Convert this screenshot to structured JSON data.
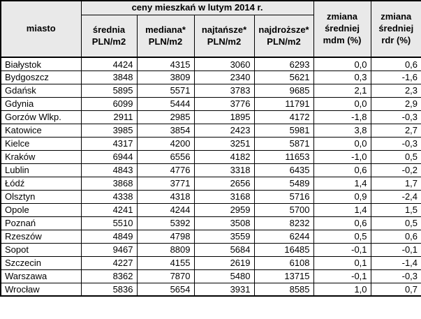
{
  "colors": {
    "header_bg": "#e9e9e9",
    "border": "#000000",
    "text": "#000000",
    "row_bg": "#ffffff"
  },
  "header": {
    "city": "miasto",
    "group": "ceny mieszkań w lutym 2014 r.",
    "sub": [
      {
        "line1": "średnia",
        "line2": "PLN/m2"
      },
      {
        "line1": "mediana*",
        "line2": "PLN/m2"
      },
      {
        "line1": "najtańsze*",
        "line2": "PLN/m2"
      },
      {
        "line1": "najdroższe*",
        "line2": "PLN/m2"
      }
    ],
    "change": [
      {
        "line1": "zmiana",
        "line2": "średniej",
        "line3": "mdm (%)"
      },
      {
        "line1": "zmiana",
        "line2": "średniej",
        "line3": "rdr (%)"
      }
    ]
  },
  "chart_data": {
    "type": "table",
    "title": "ceny mieszkań w lutym 2014 r.",
    "columns": [
      "miasto",
      "średnia PLN/m2",
      "mediana* PLN/m2",
      "najtańsze* PLN/m2",
      "najdroższe* PLN/m2",
      "zmiana średniej mdm (%)",
      "zmiana średniej rdr (%)"
    ],
    "rows": [
      [
        "Białystok",
        "4424",
        "4315",
        "3060",
        "6293",
        "0,0",
        "0,6"
      ],
      [
        "Bydgoszcz",
        "3848",
        "3809",
        "2340",
        "5621",
        "0,3",
        "-1,6"
      ],
      [
        "Gdańsk",
        "5895",
        "5571",
        "3783",
        "9685",
        "2,1",
        "2,3"
      ],
      [
        "Gdynia",
        "6099",
        "5444",
        "3776",
        "11791",
        "0,0",
        "2,9"
      ],
      [
        "Gorzów Wlkp.",
        "2911",
        "2985",
        "1895",
        "4172",
        "-1,8",
        "-0,3"
      ],
      [
        "Katowice",
        "3985",
        "3854",
        "2423",
        "5981",
        "3,8",
        "2,7"
      ],
      [
        "Kielce",
        "4317",
        "4200",
        "3251",
        "5871",
        "0,0",
        "-0,3"
      ],
      [
        "Kraków",
        "6944",
        "6556",
        "4182",
        "11653",
        "-1,0",
        "0,5"
      ],
      [
        "Lublin",
        "4843",
        "4776",
        "3318",
        "6435",
        "0,6",
        "-0,2"
      ],
      [
        "Łódź",
        "3868",
        "3771",
        "2656",
        "5489",
        "1,4",
        "1,7"
      ],
      [
        "Olsztyn",
        "4338",
        "4318",
        "3168",
        "5716",
        "0,9",
        "-2,4"
      ],
      [
        "Opole",
        "4241",
        "4244",
        "2959",
        "5700",
        "1,4",
        "1,5"
      ],
      [
        "Poznań",
        "5510",
        "5392",
        "3508",
        "8232",
        "0,6",
        "0,5"
      ],
      [
        "Rzeszów",
        "4849",
        "4798",
        "3559",
        "6244",
        "0,5",
        "0,6"
      ],
      [
        "Sopot",
        "9467",
        "8809",
        "5684",
        "16485",
        "-0,1",
        "-0,1"
      ],
      [
        "Szczecin",
        "4227",
        "4155",
        "2619",
        "6108",
        "0,1",
        "-1,4"
      ],
      [
        "Warszawa",
        "8362",
        "7870",
        "5480",
        "13715",
        "-0,1",
        "-0,3"
      ],
      [
        "Wrocław",
        "5836",
        "5654",
        "3931",
        "8585",
        "1,0",
        "0,7"
      ]
    ]
  }
}
